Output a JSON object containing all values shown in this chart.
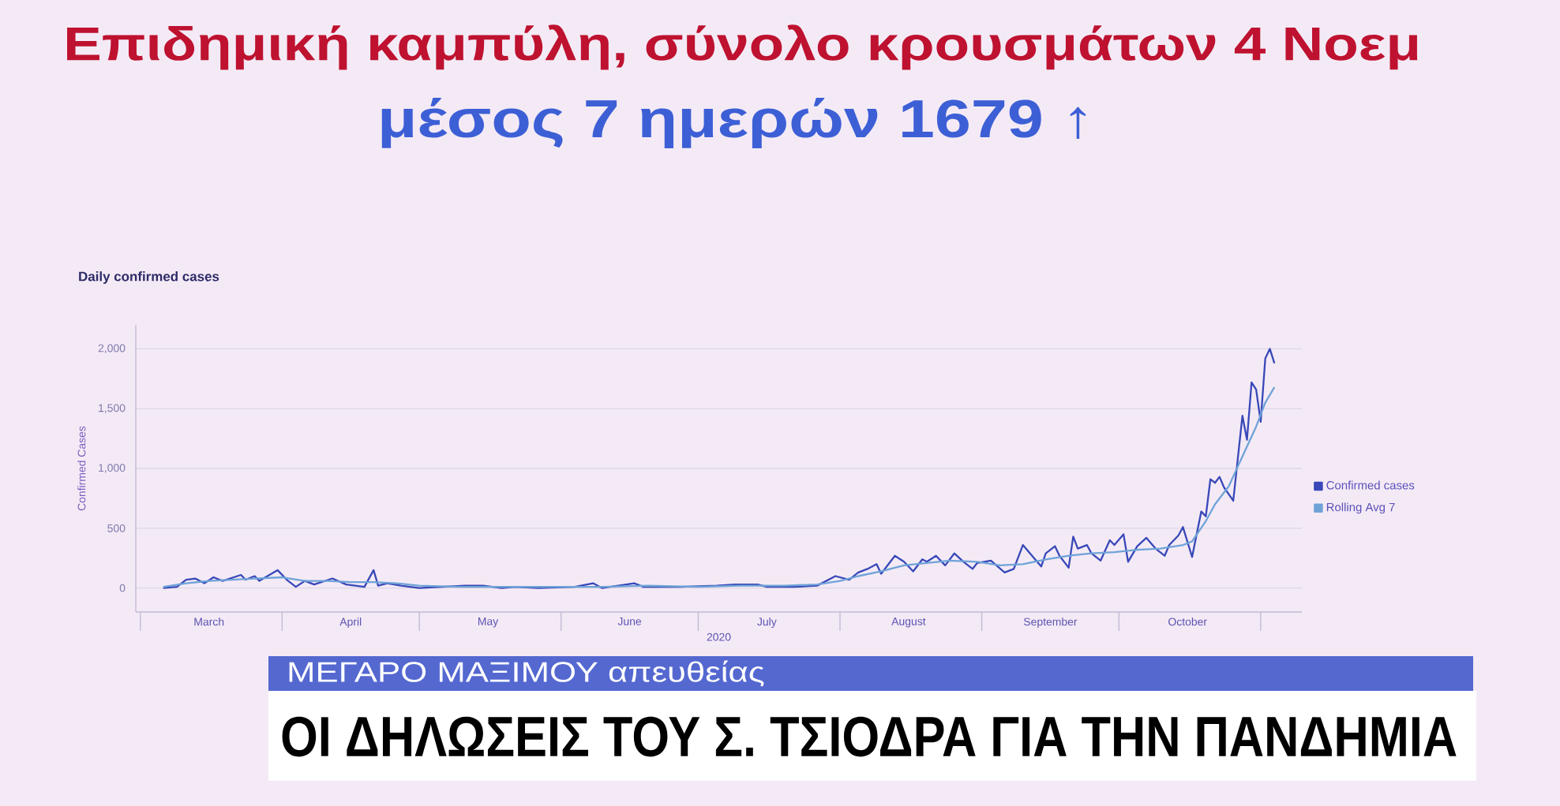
{
  "chart_data": {
    "type": "line",
    "title": "Επιδημική καμπύλη, σύνολο κρουσμάτων 4 Νοεμ",
    "subtitle": "μέσος 7 ημερών 1679 ↑",
    "xlabel": "2020",
    "ylabel": "Confirmed Cases",
    "annotations": [
      "Daily confirmed cases",
      "ΜΕΓΑΡΟ ΜΑΞΙΜΟΥ απευθείας",
      "ΟΙ ΔΗΛΩΣΕΙΣ ΤΟΥ Σ. ΤΣΙΟΔΡΑ ΓΙΑ ΤΗΝ ΠΑΝΔΗΜΙΑ"
    ],
    "xlim": [
      "2020-02-29",
      "2020-11-10"
    ],
    "xticks": [
      {
        "value": "2020-03-01",
        "label": null
      },
      {
        "value": "2020-03-16",
        "label": "March"
      },
      {
        "value": "2020-04-01",
        "label": null
      },
      {
        "value": "2020-04-16",
        "label": "April"
      },
      {
        "value": "2020-05-01",
        "label": null
      },
      {
        "value": "2020-05-16",
        "label": "May"
      },
      {
        "value": "2020-06-01",
        "label": null
      },
      {
        "value": "2020-06-16",
        "label": "June"
      },
      {
        "value": "2020-07-01",
        "label": null
      },
      {
        "value": "2020-07-16",
        "label": "July"
      },
      {
        "value": "2020-08-01",
        "label": null
      },
      {
        "value": "2020-08-16",
        "label": "August"
      },
      {
        "value": "2020-09-01",
        "label": null
      },
      {
        "value": "2020-09-16",
        "label": "September"
      },
      {
        "value": "2020-10-01",
        "label": null
      },
      {
        "value": "2020-10-16",
        "label": "October"
      },
      {
        "value": "2020-11-01",
        "label": null
      }
    ],
    "ylim": [
      -200,
      2200
    ],
    "yticks": [
      0,
      500,
      {
        "value": 1000,
        "label": "1,000"
      },
      {
        "value": 1500,
        "label": "1,500"
      },
      {
        "value": 2000,
        "label": "2,000"
      }
    ],
    "grid": "y",
    "legend": "right",
    "series": [
      {
        "name": "Confirmed cases",
        "color": "#3848b8",
        "x": [
          "2020-03-06",
          "2020-03-09",
          "2020-03-11",
          "2020-03-13",
          "2020-03-15",
          "2020-03-17",
          "2020-03-19",
          "2020-03-23",
          "2020-03-24",
          "2020-03-26",
          "2020-03-27",
          "2020-03-31",
          "2020-04-02",
          "2020-04-04",
          "2020-04-06",
          "2020-04-08",
          "2020-04-12",
          "2020-04-15",
          "2020-04-19",
          "2020-04-21",
          "2020-04-22",
          "2020-04-24",
          "2020-04-27",
          "2020-05-01",
          "2020-05-06",
          "2020-05-11",
          "2020-05-15",
          "2020-05-19",
          "2020-05-22",
          "2020-05-27",
          "2020-06-04",
          "2020-06-08",
          "2020-06-10",
          "2020-06-17",
          "2020-06-19",
          "2020-06-27",
          "2020-07-05",
          "2020-07-09",
          "2020-07-14",
          "2020-07-16",
          "2020-07-22",
          "2020-07-27",
          "2020-07-31",
          "2020-08-03",
          "2020-08-05",
          "2020-08-07",
          "2020-08-09",
          "2020-08-10",
          "2020-08-13",
          "2020-08-15",
          "2020-08-17",
          "2020-08-19",
          "2020-08-20",
          "2020-08-22",
          "2020-08-24",
          "2020-08-26",
          "2020-08-28",
          "2020-08-30",
          "2020-08-31",
          "2020-09-03",
          "2020-09-06",
          "2020-09-08",
          "2020-09-10",
          "2020-09-12",
          "2020-09-14",
          "2020-09-15",
          "2020-09-17",
          "2020-09-18",
          "2020-09-20",
          "2020-09-21",
          "2020-09-22",
          "2020-09-24",
          "2020-09-25",
          "2020-09-27",
          "2020-09-29",
          "2020-09-30",
          "2020-10-02",
          "2020-10-03",
          "2020-10-05",
          "2020-10-07",
          "2020-10-09",
          "2020-10-11",
          "2020-10-12",
          "2020-10-14",
          "2020-10-15",
          "2020-10-17",
          "2020-10-19",
          "2020-10-20",
          "2020-10-21",
          "2020-10-22",
          "2020-10-23",
          "2020-10-24",
          "2020-10-26",
          "2020-10-28",
          "2020-10-29",
          "2020-10-30",
          "2020-10-31",
          "2020-11-01",
          "2020-11-02",
          "2020-11-03",
          "2020-11-04"
        ],
        "values": [
          0,
          10,
          70,
          80,
          40,
          90,
          60,
          110,
          70,
          100,
          60,
          150,
          70,
          10,
          60,
          30,
          80,
          30,
          10,
          150,
          20,
          40,
          20,
          0,
          10,
          20,
          20,
          0,
          10,
          0,
          10,
          40,
          0,
          40,
          10,
          10,
          20,
          30,
          30,
          10,
          10,
          20,
          100,
          70,
          130,
          160,
          200,
          120,
          270,
          220,
          140,
          240,
          220,
          270,
          190,
          290,
          220,
          160,
          210,
          230,
          130,
          160,
          360,
          270,
          180,
          290,
          350,
          270,
          170,
          430,
          330,
          360,
          290,
          230,
          400,
          360,
          450,
          220,
          350,
          420,
          330,
          270,
          360,
          440,
          510,
          260,
          640,
          600,
          910,
          880,
          930,
          840,
          730,
          1440,
          1240,
          1720,
          1660,
          1390,
          1920,
          2000,
          1880
        ]
      },
      {
        "name": "Rolling Avg 7",
        "color": "#6fa3d8",
        "x": [
          "2020-03-06",
          "2020-03-11",
          "2020-03-16",
          "2020-03-21",
          "2020-03-26",
          "2020-04-01",
          "2020-04-06",
          "2020-04-11",
          "2020-04-16",
          "2020-04-21",
          "2020-04-26",
          "2020-05-01",
          "2020-05-10",
          "2020-05-20",
          "2020-06-01",
          "2020-06-10",
          "2020-06-20",
          "2020-07-01",
          "2020-07-10",
          "2020-07-20",
          "2020-07-27",
          "2020-08-01",
          "2020-08-05",
          "2020-08-10",
          "2020-08-15",
          "2020-08-20",
          "2020-08-25",
          "2020-08-31",
          "2020-09-05",
          "2020-09-10",
          "2020-09-15",
          "2020-09-20",
          "2020-09-25",
          "2020-09-30",
          "2020-10-05",
          "2020-10-10",
          "2020-10-15",
          "2020-10-17",
          "2020-10-20",
          "2020-10-22",
          "2020-10-25",
          "2020-10-28",
          "2020-10-31",
          "2020-11-02",
          "2020-11-04"
        ],
        "values": [
          10,
          40,
          60,
          70,
          80,
          90,
          60,
          60,
          50,
          50,
          40,
          20,
          10,
          10,
          10,
          10,
          20,
          10,
          20,
          20,
          30,
          60,
          100,
          140,
          190,
          210,
          230,
          220,
          190,
          200,
          240,
          270,
          290,
          300,
          320,
          330,
          360,
          390,
          560,
          700,
          850,
          1100,
          1350,
          1550,
          1680
        ]
      }
    ]
  }
}
